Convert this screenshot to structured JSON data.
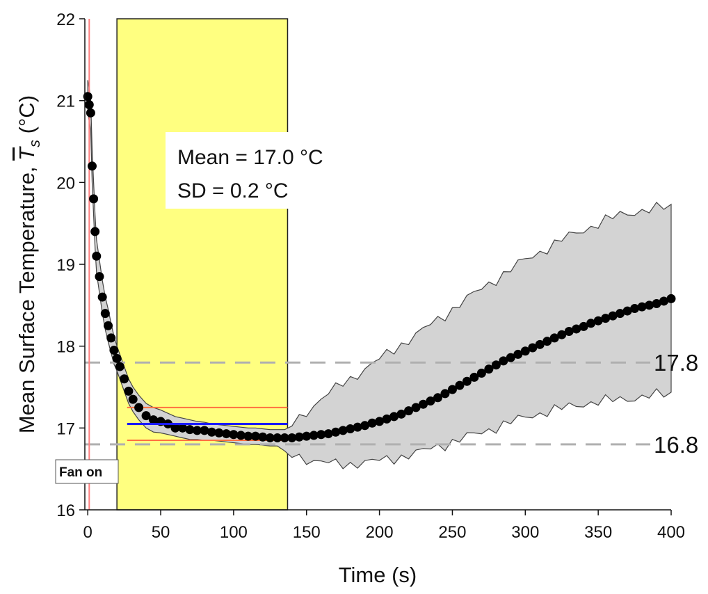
{
  "chart_data": {
    "type": "scatter",
    "title": "",
    "xlabel": "Time (s)",
    "ylabel_prefix": "Mean Surface Temperature, ",
    "ylabel_symbol": "T",
    "ylabel_subscript": "s",
    "ylabel_unit": " (°C)",
    "xlim": [
      -2,
      400
    ],
    "ylim": [
      16,
      22
    ],
    "x_ticks": [
      0,
      50,
      100,
      150,
      200,
      250,
      300,
      350,
      400
    ],
    "y_ticks": [
      16,
      17,
      18,
      19,
      20,
      21,
      22
    ],
    "x_tick_labels": [
      "0",
      "50",
      "100",
      "150",
      "200",
      "250",
      "300",
      "350",
      "400"
    ],
    "y_tick_labels": [
      "16",
      "17",
      "18",
      "19",
      "20",
      "21",
      "22"
    ],
    "highlight_window": {
      "x_start": 20,
      "x_end": 137,
      "color": "#ffff80"
    },
    "fan_on": {
      "x": 1,
      "label": "Fan on",
      "line_color": "#ff8080"
    },
    "reference_lines": [
      {
        "y": 17.8,
        "label": "17.8"
      },
      {
        "y": 16.8,
        "label": "16.8"
      }
    ],
    "window_mean": {
      "y": 17.05,
      "x_start": 27,
      "x_end": 137,
      "color": "#1a1aff"
    },
    "window_band": {
      "upper": 17.25,
      "lower": 16.85,
      "x_start": 27,
      "x_end": 137,
      "color": "#ff7040"
    },
    "annotation_lines": [
      "Mean = 17.0 °C",
      "SD = 0.2 °C"
    ],
    "series": [
      {
        "name": "Mean surface temperature",
        "marker_color": "#000000",
        "x": [
          0,
          1,
          2,
          3,
          4,
          5,
          6,
          8,
          10,
          12,
          14,
          16,
          18,
          20,
          22,
          25,
          28,
          31,
          35,
          40,
          45,
          50,
          55,
          60,
          65,
          70,
          75,
          80,
          85,
          90,
          95,
          100,
          105,
          110,
          115,
          120,
          125,
          130,
          135,
          140,
          145,
          150,
          155,
          160,
          165,
          170,
          175,
          180,
          185,
          190,
          195,
          200,
          205,
          210,
          215,
          220,
          225,
          230,
          235,
          240,
          245,
          250,
          255,
          260,
          265,
          270,
          275,
          280,
          285,
          290,
          295,
          300,
          305,
          310,
          315,
          320,
          325,
          330,
          335,
          340,
          345,
          350,
          355,
          360,
          365,
          370,
          375,
          380,
          385,
          390,
          395,
          400
        ],
        "y": [
          21.05,
          20.95,
          20.85,
          20.2,
          19.8,
          19.4,
          19.1,
          18.85,
          18.6,
          18.4,
          18.25,
          18.1,
          17.95,
          17.85,
          17.75,
          17.6,
          17.45,
          17.35,
          17.25,
          17.15,
          17.1,
          17.08,
          17.05,
          17.0,
          17.0,
          16.98,
          16.97,
          16.97,
          16.95,
          16.94,
          16.93,
          16.92,
          16.91,
          16.9,
          16.9,
          16.89,
          16.88,
          16.88,
          16.88,
          16.88,
          16.89,
          16.9,
          16.91,
          16.92,
          16.93,
          16.95,
          16.97,
          16.99,
          17.01,
          17.03,
          17.06,
          17.08,
          17.11,
          17.14,
          17.17,
          17.21,
          17.25,
          17.29,
          17.33,
          17.37,
          17.42,
          17.47,
          17.52,
          17.57,
          17.62,
          17.67,
          17.72,
          17.77,
          17.82,
          17.86,
          17.9,
          17.94,
          17.98,
          18.02,
          18.06,
          18.1,
          18.14,
          18.18,
          18.21,
          18.24,
          18.28,
          18.31,
          18.34,
          18.37,
          18.4,
          18.43,
          18.46,
          18.48,
          18.5,
          18.52,
          18.55,
          18.58
        ],
        "band_upper": [
          21.25,
          21.15,
          21.0,
          20.4,
          20.0,
          19.6,
          19.3,
          19.05,
          18.8,
          18.6,
          18.45,
          18.28,
          18.12,
          18.0,
          17.9,
          17.75,
          17.6,
          17.5,
          17.4,
          17.3,
          17.25,
          17.22,
          17.18,
          17.14,
          17.12,
          17.1,
          17.08,
          17.07,
          17.05,
          17.04,
          17.03,
          17.02,
          17.01,
          17.0,
          17.0,
          16.99,
          16.98,
          16.98,
          16.98,
          17.05,
          17.12,
          17.2,
          17.28,
          17.35,
          17.42,
          17.48,
          17.55,
          17.6,
          17.66,
          17.72,
          17.78,
          17.84,
          17.9,
          17.96,
          18.02,
          18.08,
          18.14,
          18.2,
          18.26,
          18.32,
          18.38,
          18.45,
          18.52,
          18.58,
          18.64,
          18.7,
          18.76,
          18.82,
          18.88,
          18.94,
          19.0,
          19.05,
          19.1,
          19.15,
          19.2,
          19.25,
          19.3,
          19.34,
          19.38,
          19.42,
          19.46,
          19.5,
          19.54,
          19.57,
          19.6,
          19.62,
          19.64,
          19.66,
          19.67,
          19.68,
          19.69,
          19.7
        ],
        "band_lower": [
          20.85,
          20.75,
          20.65,
          20.0,
          19.6,
          19.2,
          18.9,
          18.65,
          18.4,
          18.2,
          18.05,
          17.92,
          17.78,
          17.7,
          17.6,
          17.45,
          17.3,
          17.2,
          17.1,
          17.0,
          16.95,
          16.94,
          16.92,
          16.9,
          16.88,
          16.86,
          16.86,
          16.85,
          16.85,
          16.84,
          16.83,
          16.82,
          16.81,
          16.8,
          16.8,
          16.79,
          16.78,
          16.78,
          16.72,
          16.68,
          16.65,
          16.62,
          16.6,
          16.58,
          16.57,
          16.56,
          16.56,
          16.56,
          16.57,
          16.58,
          16.59,
          16.6,
          16.62,
          16.63,
          16.65,
          16.67,
          16.69,
          16.72,
          16.75,
          16.78,
          16.8,
          16.83,
          16.86,
          16.89,
          16.92,
          16.95,
          16.98,
          17.01,
          17.04,
          17.07,
          17.1,
          17.13,
          17.16,
          17.18,
          17.2,
          17.22,
          17.24,
          17.26,
          17.28,
          17.3,
          17.31,
          17.32,
          17.33,
          17.34,
          17.35,
          17.36,
          17.37,
          17.38,
          17.39,
          17.4,
          17.41,
          17.42
        ]
      }
    ]
  }
}
